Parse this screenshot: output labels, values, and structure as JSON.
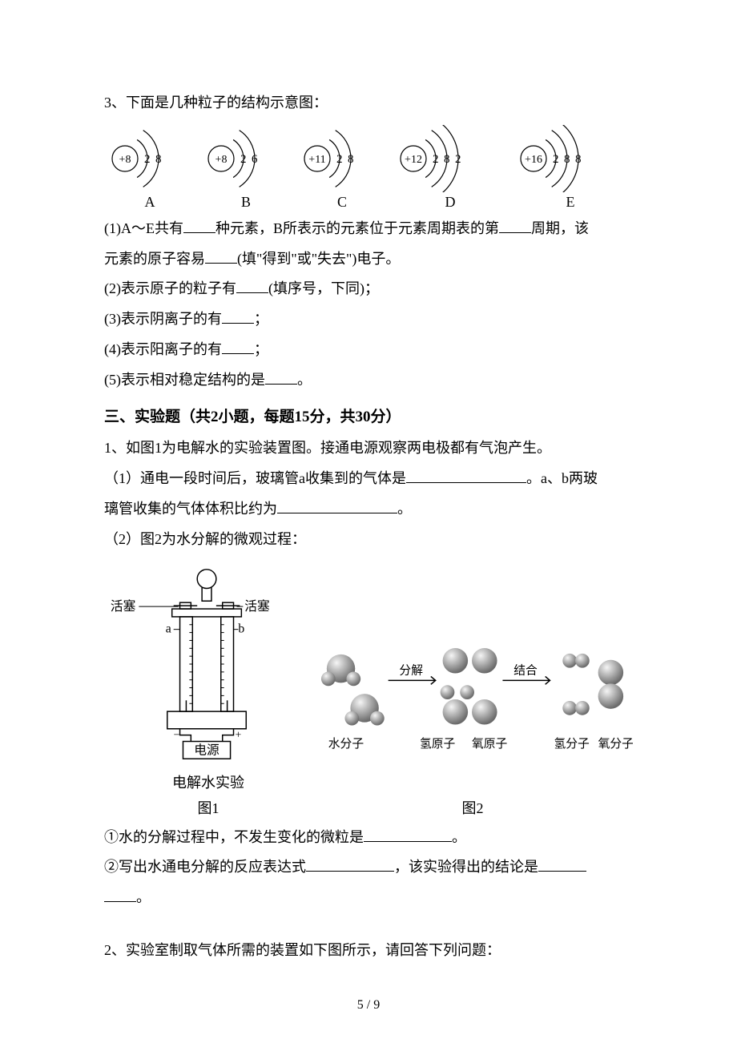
{
  "colors": {
    "text": "#000000",
    "bg": "#ffffff",
    "svg_stroke": "#000000",
    "gradient_light": "#f5f5f5",
    "gradient_dark": "#6a6a6a",
    "arrow": "#000000"
  },
  "q3": {
    "stem": "3、下面是几种粒子的结构示意图：",
    "atoms": [
      {
        "label": "A",
        "nucleus": "+8",
        "shells": [
          "2",
          "8"
        ]
      },
      {
        "label": "B",
        "nucleus": "+8",
        "shells": [
          "2",
          "6"
        ]
      },
      {
        "label": "C",
        "nucleus": "+11",
        "shells": [
          "2",
          "8"
        ]
      },
      {
        "label": "D",
        "nucleus": "+12",
        "shells": [
          "2",
          "8",
          "2"
        ]
      },
      {
        "label": "E",
        "nucleus": "+16",
        "shells": [
          "2",
          "8",
          "8"
        ]
      }
    ],
    "p1a": "(1)A～E共有",
    "p1b": "种元素，B所表示的元素位于元素周期表的第",
    "p1c": "周期，该",
    "p1d": "元素的原子容易",
    "p1e": "(填\"得到\"或\"失去\")电子。",
    "p2a": "(2)表示原子的粒子有",
    "p2b": "(填序号，下同)；",
    "p3a": "(3)表示阴离子的有",
    "p3b": "；",
    "p4a": "(4)表示阳离子的有",
    "p4b": "；",
    "p5a": "(5)表示相对稳定结构的是",
    "p5b": "。"
  },
  "section3_title": "三、实验题（共2小题，每题15分，共30分）",
  "q1": {
    "stem": "1、如图1为电解水的实验装置图。接通电源观察两电极都有气泡产生。",
    "p1a": "（1）通电一段时间后，玻璃管a收集到的气体是",
    "p1b": "。a、b两玻",
    "p1c": "璃管收集的气体体积比约为",
    "p1d": "。",
    "p2": "（2）图2为水分解的微观过程：",
    "fig1": {
      "valve_left": "活塞",
      "valve_right": "活塞",
      "tube_a": "a",
      "tube_b": "b",
      "power": "电源",
      "caption_exp": "电解水实验",
      "caption_fig1": "图1"
    },
    "fig2": {
      "water_mol": "水分子",
      "decompose": "分解",
      "h_atom": "氢原子",
      "o_atom": "氧原子",
      "combine": "结合",
      "h_mol": "氢分子",
      "o_mol": "氧分子",
      "caption_fig2": "图2"
    },
    "p3a": "①水的分解过程中，不发生变化的微粒是",
    "p3b": "。",
    "p4a": "②写出水通电分解的反应表达式",
    "p4b": "，该实验得出的结论是",
    "p4c": "。"
  },
  "q2": {
    "stem": "2、实验室制取气体所需的装置如下图所示，请回答下列问题："
  },
  "footer": "5 / 9"
}
